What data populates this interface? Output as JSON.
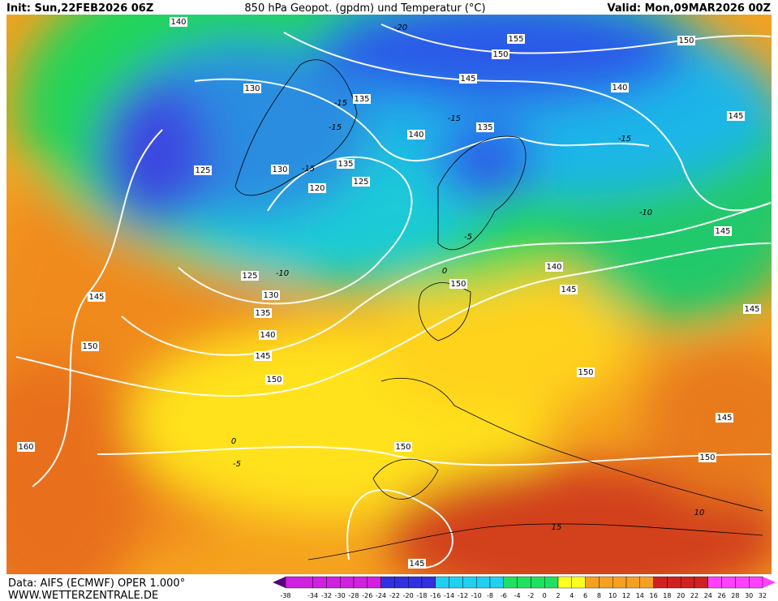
{
  "header": {
    "init": "Init: Sun,22FEB2026 06Z",
    "title": "850 hPa Geopot. (gpdm) und Temperatur (°C)",
    "valid": "Valid: Mon,09MAR2026 00Z"
  },
  "geopotential_labels": [
    140,
    155,
    150,
    150,
    145,
    130,
    135,
    140,
    145,
    140,
    135,
    125,
    130,
    135,
    125,
    120,
    145,
    140,
    125,
    150,
    130,
    145,
    145,
    145,
    135,
    140,
    150,
    145,
    150,
    150,
    145,
    160,
    150,
    150,
    145
  ],
  "temperature_labels": [
    -20,
    -15,
    -15,
    -15,
    -15,
    -15,
    -10,
    -5,
    -10,
    0,
    0,
    -5,
    10,
    15
  ],
  "colorbar": {
    "ticks": [
      -38,
      -34,
      -32,
      -30,
      -28,
      -26,
      -24,
      -22,
      -20,
      -18,
      -16,
      -14,
      -12,
      -10,
      -8,
      -6,
      -4,
      -2,
      0,
      2,
      4,
      6,
      8,
      10,
      12,
      14,
      16,
      18,
      20,
      22,
      24,
      26,
      28,
      30,
      32
    ]
  },
  "footer": {
    "data_source": "Data: AIFS (ECMWF) OPER 1.000°",
    "website": "WWW.WETTERZENTRALE.DE"
  }
}
